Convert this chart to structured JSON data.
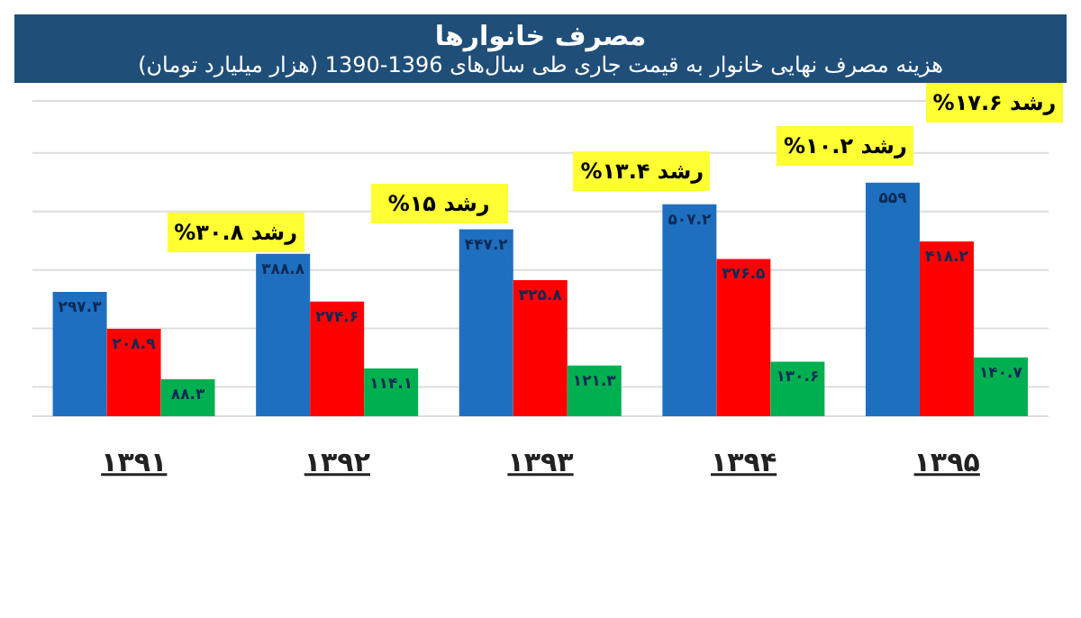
{
  "chart_data": {
    "type": "bar",
    "title": "مصرف خانوارها",
    "subtitle": "هزینه مصرف نهایی خانوار به قیمت جاری طی سال‌های 1396-1390 (هزار میلیارد تومان)",
    "categories": [
      "۱۳۹۱",
      "۱۳۹۲",
      "۱۳۹۳",
      "۱۳۹۴",
      "۱۳۹۵"
    ],
    "series": [
      {
        "color": "#1f6fc0",
        "values": [
          297.3,
          388.8,
          447.2,
          507.2,
          559
        ],
        "value_labels": [
          "۲۹۷.۳",
          "۳۸۸.۸",
          "۴۴۷.۲",
          "۵۰۷.۲",
          "۵۵۹"
        ]
      },
      {
        "color": "#ff0000",
        "values": [
          208.9,
          274.6,
          325.8,
          376.5,
          418.2
        ],
        "value_labels": [
          "۲۰۸.۹",
          "۲۷۴.۶",
          "۳۲۵.۸",
          "۳۷۶.۵",
          "۴۱۸.۲"
        ]
      },
      {
        "color": "#00b050",
        "values": [
          88.3,
          114.1,
          121.3,
          130.6,
          140.7
        ],
        "value_labels": [
          "۸۸.۳",
          "۱۱۴.۱",
          "۱۲۱.۳",
          "۱۳۰.۶",
          "۱۴۰.۷"
        ]
      }
    ],
    "annotations": [
      "رشد ۳۰.۸%",
      "رشد ۱۵%",
      "رشد ۱۳.۴%",
      "رشد ۱۰.۲%",
      "رشد ۱۷.۶%"
    ],
    "grid": "y",
    "legend": false
  }
}
